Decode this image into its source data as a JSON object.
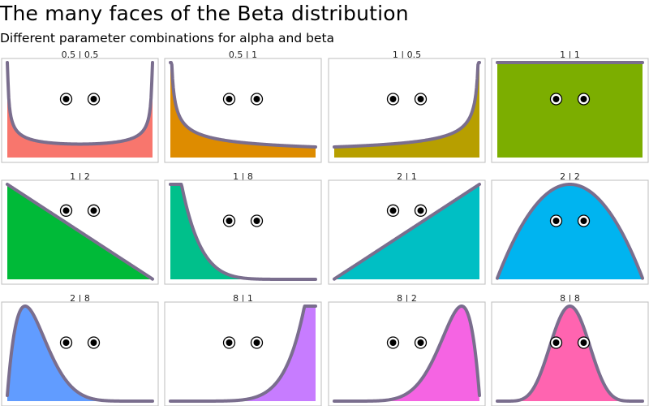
{
  "title": "The many faces of the Beta distribution",
  "subtitle": "Different parameter combinations for alpha and beta",
  "chart_data": {
    "type": "area",
    "x_range": [
      0,
      1
    ],
    "facet_layout": "3 rows x 4 columns",
    "line_color": "#7a6e8e",
    "eye_color": "#000000",
    "panels": [
      {
        "label": "0.5 | 0.5",
        "alpha": 0.5,
        "beta": 0.5,
        "fill": "#f8766d"
      },
      {
        "label": "0.5 | 1",
        "alpha": 0.5,
        "beta": 1,
        "fill": "#de8c00"
      },
      {
        "label": "1 | 0.5",
        "alpha": 1,
        "beta": 0.5,
        "fill": "#b79f00"
      },
      {
        "label": "1 | 1",
        "alpha": 1,
        "beta": 1,
        "fill": "#7cae00"
      },
      {
        "label": "1 | 2",
        "alpha": 1,
        "beta": 2,
        "fill": "#00ba38"
      },
      {
        "label": "1 | 8",
        "alpha": 1,
        "beta": 8,
        "fill": "#00c08b"
      },
      {
        "label": "2 | 1",
        "alpha": 2,
        "beta": 1,
        "fill": "#00bfc4"
      },
      {
        "label": "2 | 2",
        "alpha": 2,
        "beta": 2,
        "fill": "#00b4f0"
      },
      {
        "label": "2 | 8",
        "alpha": 2,
        "beta": 8,
        "fill": "#619cff"
      },
      {
        "label": "8 | 1",
        "alpha": 8,
        "beta": 1,
        "fill": "#c77cff"
      },
      {
        "label": "8 | 2",
        "alpha": 8,
        "beta": 2,
        "fill": "#f564e3"
      },
      {
        "label": "8 | 8",
        "alpha": 8,
        "beta": 8,
        "fill": "#ff64b0"
      }
    ]
  }
}
